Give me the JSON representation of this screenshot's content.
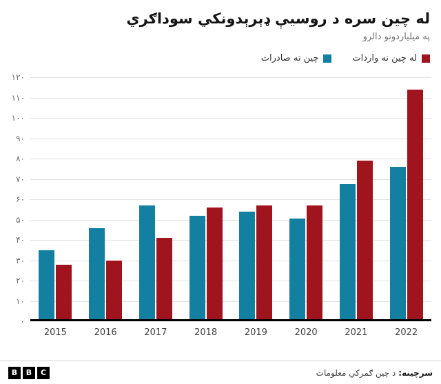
{
  "chart_data": {
    "type": "bar",
    "title": "له چین سره د روسیې ډېرېدونکي سوداګري",
    "subtitle": "په میلیاردونو دالرو",
    "categories": [
      "2015",
      "2016",
      "2017",
      "2018",
      "2019",
      "2020",
      "2021",
      "2022"
    ],
    "series": [
      {
        "name": "چین ته صادرات",
        "color": "#1380A1",
        "values": [
          35,
          46,
          57,
          52,
          54,
          50.5,
          67.5,
          76
        ]
      },
      {
        "name": "له چین نه واردات",
        "color": "#A0151D",
        "values": [
          28,
          30,
          41,
          56,
          57,
          57,
          79,
          114
        ]
      }
    ],
    "ylim": [
      0,
      120
    ],
    "ytick_step": 10,
    "ytick_labels": [
      "۰",
      "۱۰",
      "۲۰",
      "۳۰",
      "۴۰",
      "۵۰",
      "۶۰",
      "۷۰",
      "۸۰",
      "۹۰",
      "۱۰۰",
      "۱۱۰",
      "۱۲۰"
    ],
    "grid": true,
    "legend_position": "top-right",
    "xlabel": "",
    "ylabel": ""
  },
  "footer": {
    "logo_letters": [
      "B",
      "B",
      "C"
    ],
    "source_label": "سرچینه:",
    "source_text": "د چین ګمرکي معلومات"
  }
}
